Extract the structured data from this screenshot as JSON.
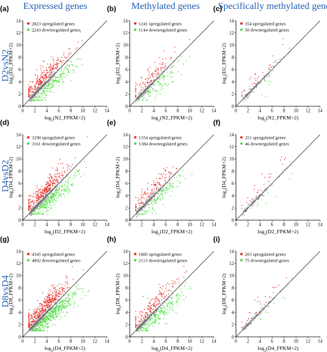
{
  "figure": {
    "column_titles": [
      "Expressed genes",
      "Methylated genes",
      "Specifically methylated genes"
    ],
    "row_titles": [
      "D2vsN2",
      "D4vsD2",
      "D8vsD4"
    ]
  },
  "colors": {
    "up": "#e8201e",
    "down": "#3ddc2f",
    "neutral": "#9a9a9a",
    "title": "#1f5fb5"
  },
  "chart_data": [
    {
      "type": "scatter",
      "label": "(a)",
      "xlabel": "N2_FPKM+2",
      "ylabel": "D2_FPKM+2",
      "xlabel_base": "log2(",
      "log_base": "2",
      "xlim": [
        0,
        14
      ],
      "ylim": [
        0,
        14
      ],
      "ticks": [
        0,
        2,
        4,
        6,
        8,
        10,
        12,
        14
      ],
      "diagonal": true,
      "series": [
        {
          "name": "2823 upregulated genes",
          "count": 2823,
          "color": "#e8201e"
        },
        {
          "name": "2243 downregulated genes",
          "count": 2243,
          "color": "#3ddc2f"
        }
      ]
    },
    {
      "type": "scatter",
      "label": "(b)",
      "xlabel": "N2_FPKM+2",
      "ylabel": "D2_FPKM+2",
      "log_base": "2",
      "xlim": [
        0,
        14
      ],
      "ylim": [
        0,
        14
      ],
      "ticks": [
        0,
        2,
        4,
        6,
        8,
        10,
        12,
        14
      ],
      "diagonal": true,
      "series": [
        {
          "name": "1241 upregulated genes",
          "count": 1241,
          "color": "#e8201e"
        },
        {
          "name": "1144 downregulated genes",
          "count": 1144,
          "color": "#3ddc2f"
        }
      ]
    },
    {
      "type": "scatter",
      "label": "(c)",
      "xlabel": "N2_FPKM+2",
      "ylabel": "D2_FPKM+2",
      "log_base": "2",
      "xlim": [
        0,
        14
      ],
      "ylim": [
        0,
        14
      ],
      "ticks": [
        0,
        2,
        4,
        6,
        8,
        10,
        12,
        14
      ],
      "diagonal": true,
      "series": [
        {
          "name": "354 upregulated genes",
          "count": 354,
          "color": "#e8201e"
        },
        {
          "name": "50 downregulated genes",
          "count": 50,
          "color": "#3ddc2f"
        }
      ]
    },
    {
      "type": "scatter",
      "label": "(d)",
      "xlabel": "D2_FPKM+2",
      "ylabel": "D4_FPKM+2",
      "log_base": "2",
      "xlim": [
        0,
        14
      ],
      "ylim": [
        0,
        14
      ],
      "ticks": [
        0,
        2,
        4,
        6,
        8,
        10,
        12,
        14
      ],
      "diagonal": true,
      "series": [
        {
          "name": "3290 upregulated genes",
          "count": 3290,
          "color": "#e8201e"
        },
        {
          "name": "3161 downregulated genes",
          "count": 3161,
          "color": "#3ddc2f"
        }
      ]
    },
    {
      "type": "scatter",
      "label": "(e)",
      "xlabel": "D2_FPKM+2",
      "ylabel": "D4_FPKM+2",
      "log_base": "2",
      "xlim": [
        0,
        14
      ],
      "ylim": [
        0,
        14
      ],
      "ticks": [
        0,
        2,
        4,
        6,
        8,
        10,
        12,
        14
      ],
      "diagonal": true,
      "series": [
        {
          "name": "1354 upregulated genes",
          "count": 1354,
          "color": "#e8201e"
        },
        {
          "name": "1384 downregulated genes",
          "count": 1384,
          "color": "#3ddc2f"
        }
      ]
    },
    {
      "type": "scatter",
      "label": "(f)",
      "xlabel": "D2_FPKM+2",
      "ylabel": "D4_FPKM+2",
      "log_base": "2",
      "xlim": [
        0,
        14
      ],
      "ylim": [
        0,
        14
      ],
      "ticks": [
        0,
        2,
        4,
        6,
        8,
        10,
        12,
        14
      ],
      "diagonal": true,
      "series": [
        {
          "name": "251 upregulated genes",
          "count": 251,
          "color": "#e8201e"
        },
        {
          "name": "46 downregulated genes",
          "count": 46,
          "color": "#3ddc2f"
        }
      ]
    },
    {
      "type": "scatter",
      "label": "(g)",
      "xlabel": "D4_FPKM+2",
      "ylabel": "D8_FPKM+2",
      "log_base": "2",
      "xlim": [
        0,
        14
      ],
      "ylim": [
        0,
        14
      ],
      "ticks": [
        0,
        2,
        4,
        6,
        8,
        10,
        12,
        14
      ],
      "diagonal": true,
      "series": [
        {
          "name": "4345 upregulated genes",
          "count": 4345,
          "color": "#e8201e"
        },
        {
          "name": "4892 downregulated genes",
          "count": 4892,
          "color": "#3ddc2f"
        }
      ]
    },
    {
      "type": "scatter",
      "label": "(h)",
      "xlabel": "D4_FPKM+2",
      "ylabel": "D8_FPKM+2",
      "log_base": "2",
      "xlim": [
        0,
        14
      ],
      "ylim": [
        0,
        14
      ],
      "ticks": [
        0,
        2,
        4,
        6,
        8,
        10,
        12,
        14
      ],
      "diagonal": true,
      "series": [
        {
          "name": "1885 upregulated genes",
          "count": 1885,
          "color": "#e8201e"
        },
        {
          "name": "2113 downregulated genes",
          "count": 2113,
          "color": "#3ddc2f"
        }
      ]
    },
    {
      "type": "scatter",
      "label": "(i)",
      "xlabel": "D4_FPKM+2",
      "ylabel": "D8_FPKM+2",
      "log_base": "2",
      "xlim": [
        0,
        14
      ],
      "ylim": [
        0,
        14
      ],
      "ticks": [
        0,
        2,
        4,
        6,
        8,
        10,
        12,
        14
      ],
      "diagonal": true,
      "series": [
        {
          "name": "203 upregulated genes",
          "count": 203,
          "color": "#e8201e"
        },
        {
          "name": "75 downregulated genes",
          "count": 75,
          "color": "#3ddc2f"
        }
      ]
    }
  ]
}
